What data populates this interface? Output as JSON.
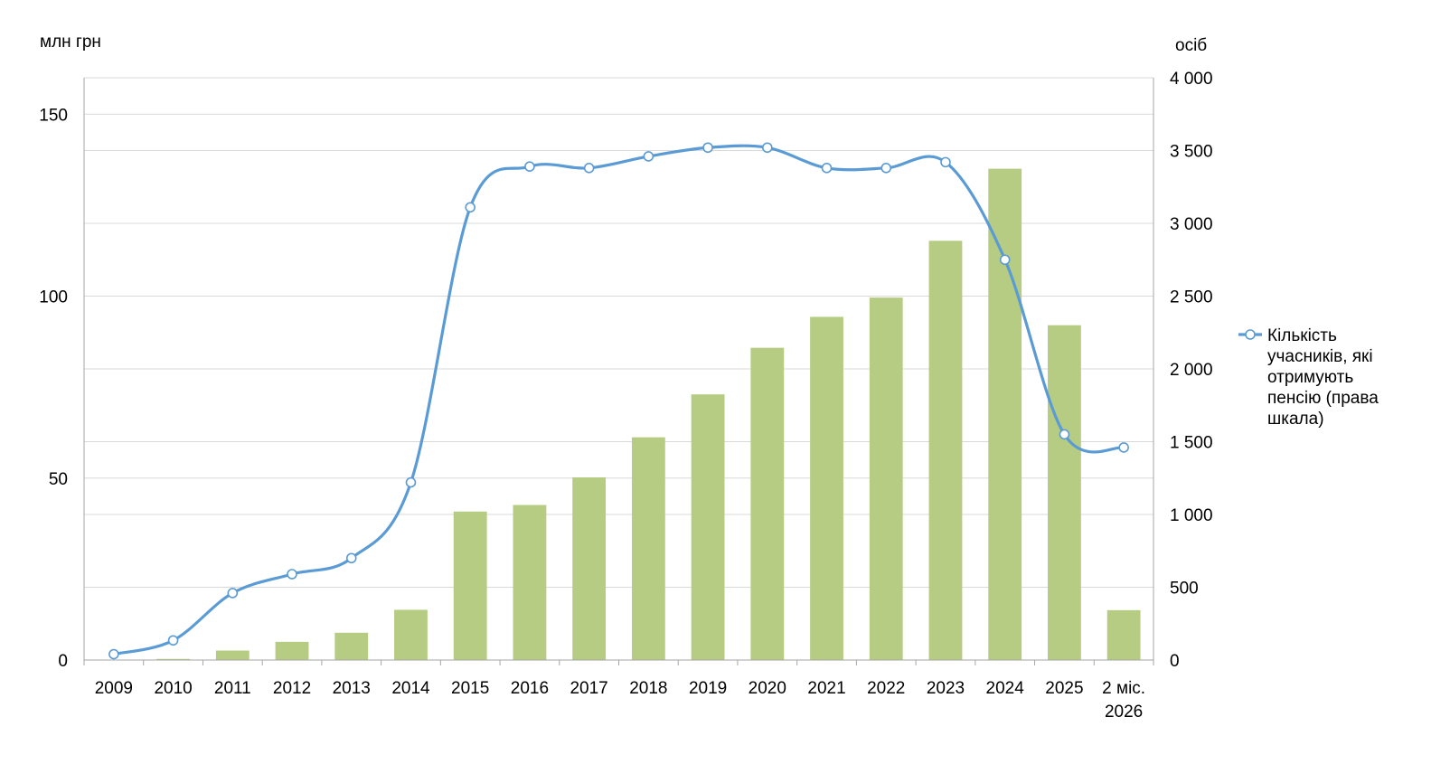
{
  "chart_data": {
    "type": "bar+line",
    "categories": [
      "2009",
      "2010",
      "2011",
      "2012",
      "2013",
      "2014",
      "2015",
      "2016",
      "2017",
      "2018",
      "2019",
      "2020",
      "2021",
      "2022",
      "2023",
      "2024",
      "2025",
      "2 міс.\n2026"
    ],
    "left_axis": {
      "label": "млн грн",
      "ylim": [
        0,
        160
      ],
      "tick_values": [
        0,
        50,
        100,
        150
      ],
      "tick_labels": [
        "0",
        "50",
        "100",
        "150"
      ],
      "minor_gridlines": true
    },
    "right_axis": {
      "label": "осіб",
      "ylim": [
        0,
        4000
      ],
      "tick_values": [
        0,
        500,
        1000,
        1500,
        2000,
        2500,
        3000,
        3500,
        4000
      ],
      "tick_labels": [
        "0",
        "500",
        "1 000",
        "1 500",
        "2 000",
        "2 500",
        "3 000",
        "3 500",
        "4 000"
      ]
    },
    "bars": {
      "axis": "left",
      "color": "#b5cc82",
      "values": [
        0,
        0.3,
        2.6,
        5.0,
        7.5,
        13.8,
        40.8,
        42.6,
        50.2,
        61.2,
        73.0,
        85.8,
        94.3,
        99.6,
        115.2,
        135.0,
        92.0,
        13.7
      ]
    },
    "series": [
      {
        "name": "Кількість учасників, які отримують пенсію (права шкала)",
        "axis": "right",
        "color": "#5b9bd5",
        "marker": "circle",
        "smooth": true,
        "values": [
          40,
          135,
          460,
          590,
          700,
          1220,
          3110,
          3390,
          3380,
          3460,
          3520,
          3520,
          3380,
          3380,
          3420,
          2750,
          1550,
          1460
        ]
      }
    ],
    "legend": {
      "placement": "right",
      "text_lines": [
        "Кількість",
        "учасників, які",
        "отримують",
        "пенсію (права",
        "шкала)"
      ]
    },
    "grid": true
  }
}
